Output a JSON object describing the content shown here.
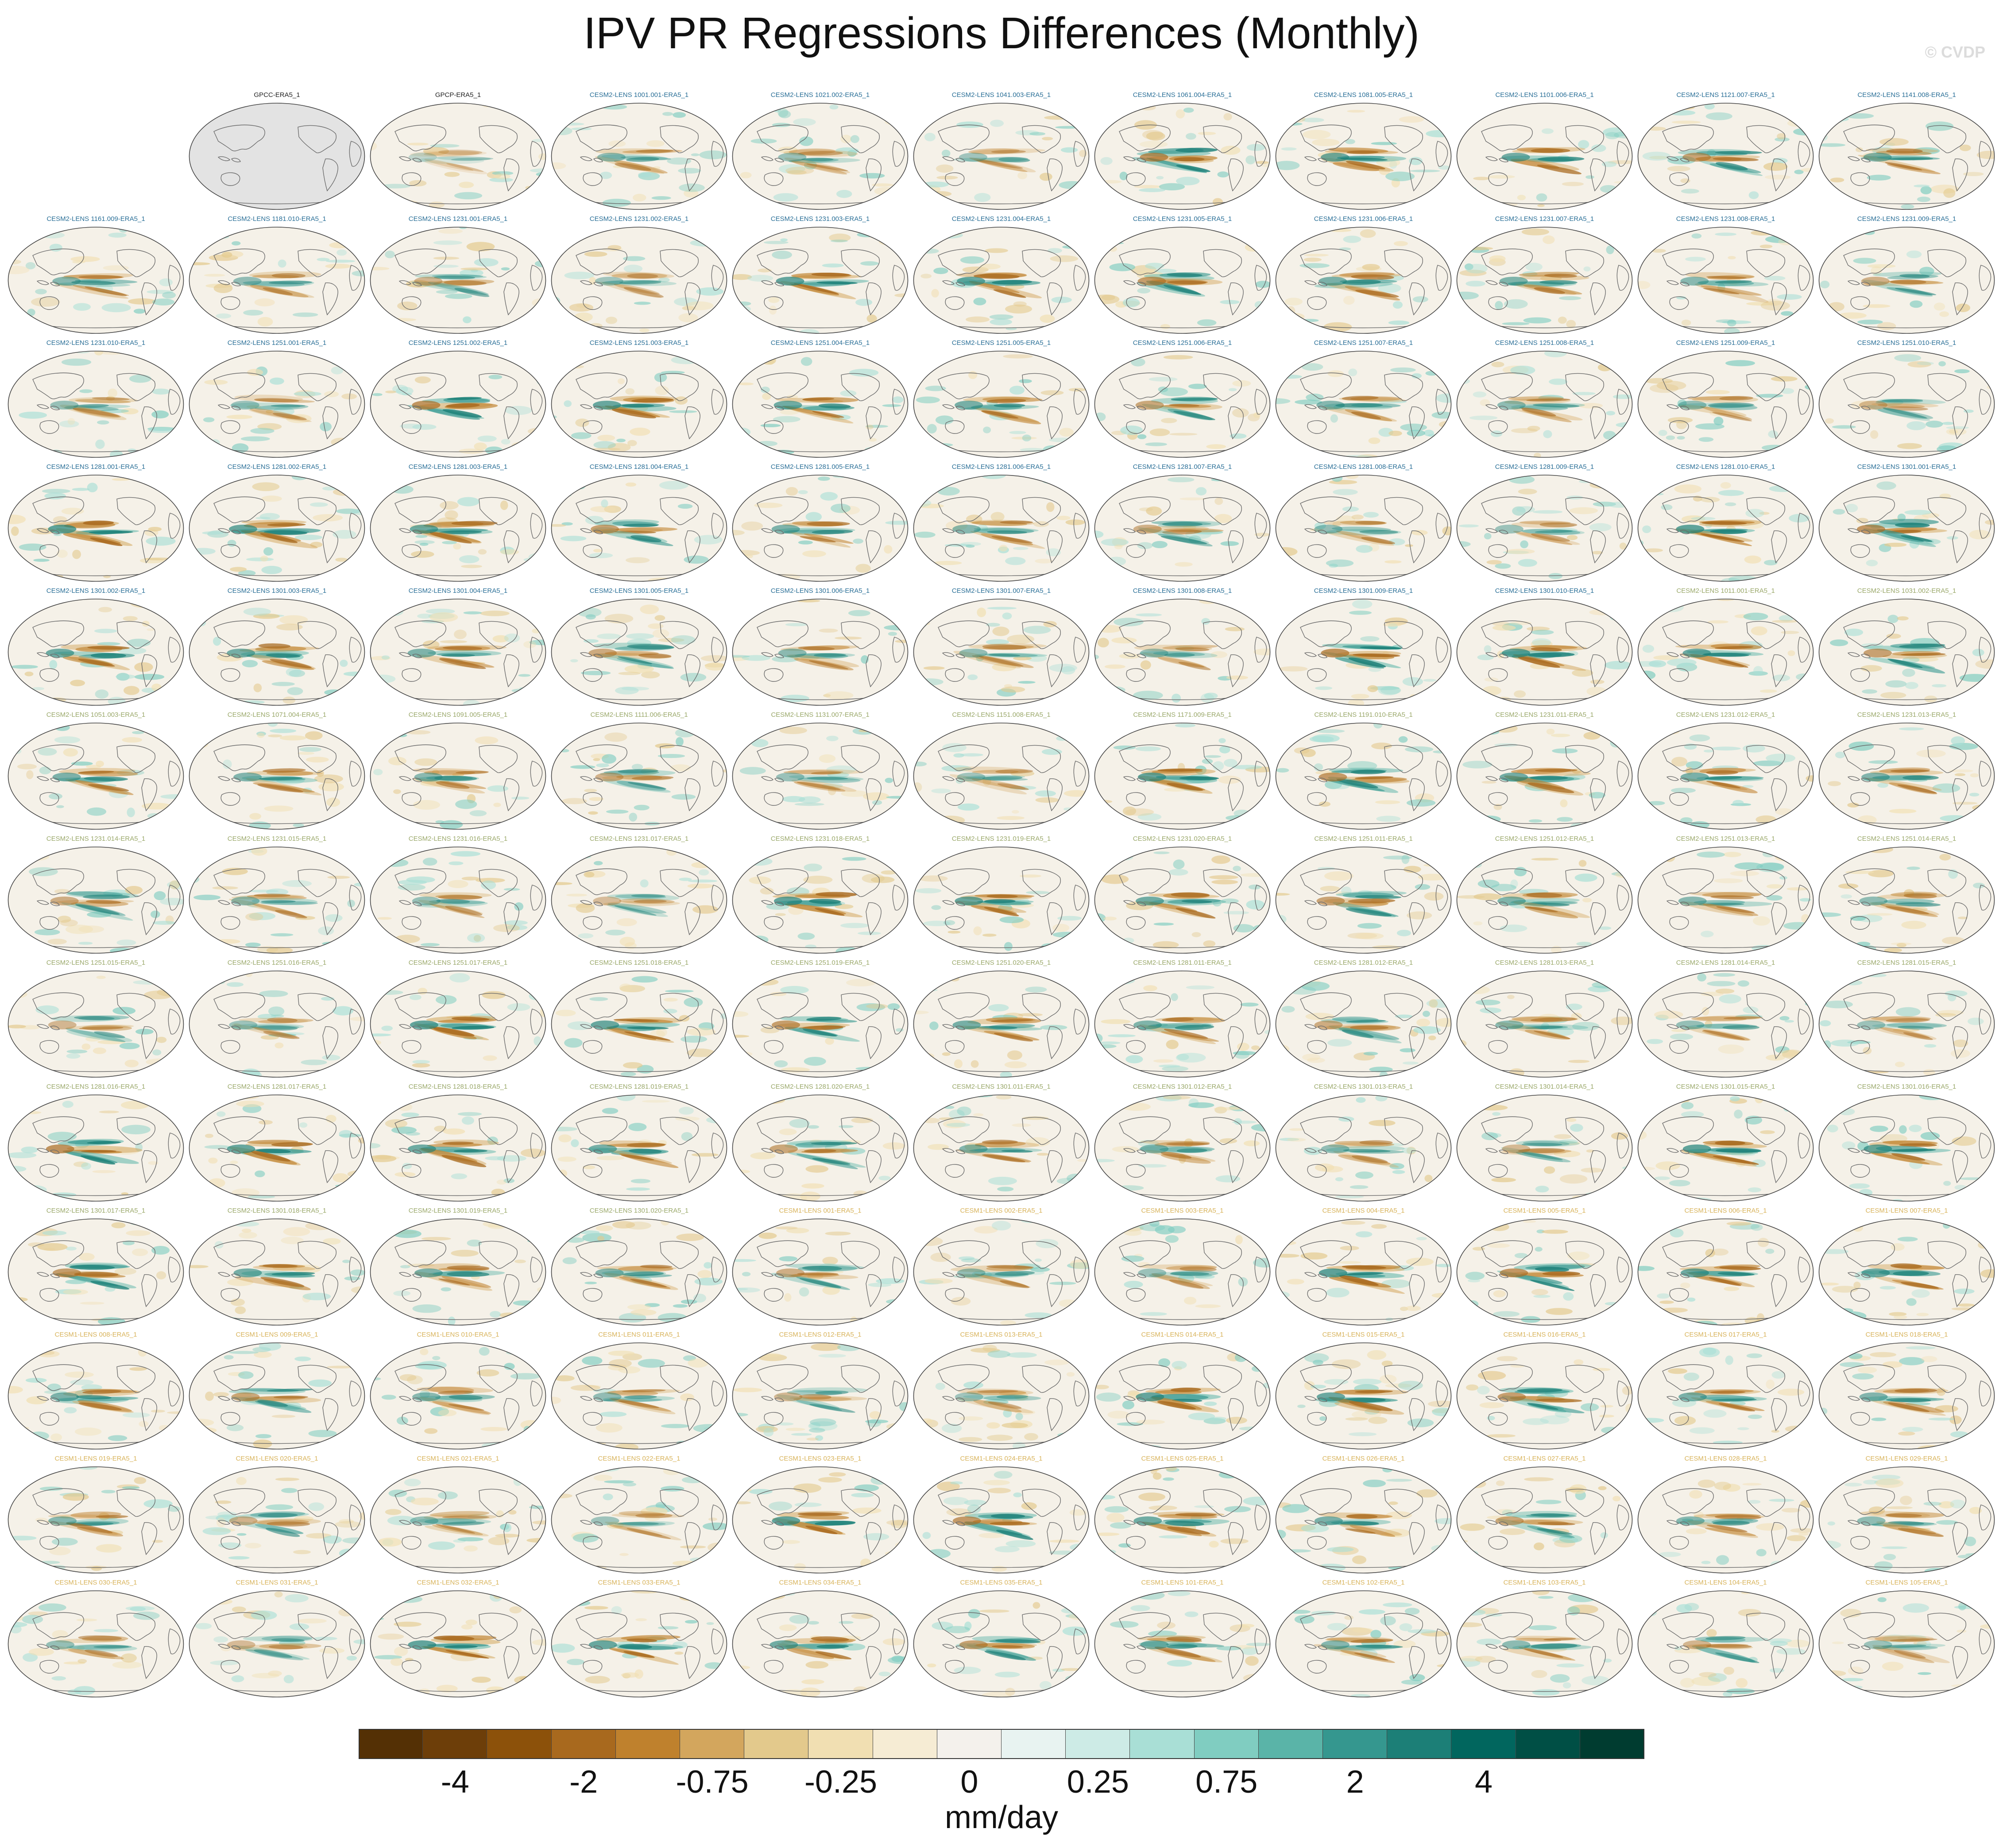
{
  "title": "IPV PR Regressions Differences (Monthly)",
  "watermark": "© CVDP",
  "colorbar": {
    "units": "mm/day",
    "colors": [
      "#543005",
      "#6d3e09",
      "#8c510a",
      "#a8691e",
      "#bf812d",
      "#d3a65d",
      "#e3c98c",
      "#f1dfb2",
      "#f6ecd4",
      "#f4f1ec",
      "#e8f3f1",
      "#cdebe6",
      "#a9dfd6",
      "#80cdc1",
      "#5ab4a8",
      "#35978f",
      "#1c7f77",
      "#01665e",
      "#004f45",
      "#003c30"
    ],
    "tick_labels": [
      "-4",
      "-2",
      "-0.75",
      "-0.25",
      "0",
      "0.25",
      "0.75",
      "2",
      "4"
    ]
  },
  "panels": [
    {
      "label": "",
      "group": "empty"
    },
    {
      "label": "GPCC-ERA5_1",
      "group": "obs-missing"
    },
    {
      "label": "GPCP-ERA5_1",
      "group": "obs"
    },
    {
      "label": "CESM2-LENS 1001.001-ERA5_1",
      "group": "cesm2"
    },
    {
      "label": "CESM2-LENS 1021.002-ERA5_1",
      "group": "cesm2"
    },
    {
      "label": "CESM2-LENS 1041.003-ERA5_1",
      "group": "cesm2"
    },
    {
      "label": "CESM2-LENS 1061.004-ERA5_1",
      "group": "cesm2"
    },
    {
      "label": "CESM2-LENS 1081.005-ERA5_1",
      "group": "cesm2"
    },
    {
      "label": "CESM2-LENS 1101.006-ERA5_1",
      "group": "cesm2"
    },
    {
      "label": "CESM2-LENS 1121.007-ERA5_1",
      "group": "cesm2"
    },
    {
      "label": "CESM2-LENS 1141.008-ERA5_1",
      "group": "cesm2"
    },
    {
      "label": "CESM2-LENS 1161.009-ERA5_1",
      "group": "cesm2"
    },
    {
      "label": "CESM2-LENS 1181.010-ERA5_1",
      "group": "cesm2"
    },
    {
      "label": "CESM2-LENS 1231.001-ERA5_1",
      "group": "cesm2"
    },
    {
      "label": "CESM2-LENS 1231.002-ERA5_1",
      "group": "cesm2"
    },
    {
      "label": "CESM2-LENS 1231.003-ERA5_1",
      "group": "cesm2"
    },
    {
      "label": "CESM2-LENS 1231.004-ERA5_1",
      "group": "cesm2"
    },
    {
      "label": "CESM2-LENS 1231.005-ERA5_1",
      "group": "cesm2"
    },
    {
      "label": "CESM2-LENS 1231.006-ERA5_1",
      "group": "cesm2"
    },
    {
      "label": "CESM2-LENS 1231.007-ERA5_1",
      "group": "cesm2"
    },
    {
      "label": "CESM2-LENS 1231.008-ERA5_1",
      "group": "cesm2"
    },
    {
      "label": "CESM2-LENS 1231.009-ERA5_1",
      "group": "cesm2"
    },
    {
      "label": "CESM2-LENS 1231.010-ERA5_1",
      "group": "cesm2"
    },
    {
      "label": "CESM2-LENS 1251.001-ERA5_1",
      "group": "cesm2"
    },
    {
      "label": "CESM2-LENS 1251.002-ERA5_1",
      "group": "cesm2"
    },
    {
      "label": "CESM2-LENS 1251.003-ERA5_1",
      "group": "cesm2"
    },
    {
      "label": "CESM2-LENS 1251.004-ERA5_1",
      "group": "cesm2"
    },
    {
      "label": "CESM2-LENS 1251.005-ERA5_1",
      "group": "cesm2"
    },
    {
      "label": "CESM2-LENS 1251.006-ERA5_1",
      "group": "cesm2"
    },
    {
      "label": "CESM2-LENS 1251.007-ERA5_1",
      "group": "cesm2"
    },
    {
      "label": "CESM2-LENS 1251.008-ERA5_1",
      "group": "cesm2"
    },
    {
      "label": "CESM2-LENS 1251.009-ERA5_1",
      "group": "cesm2"
    },
    {
      "label": "CESM2-LENS 1251.010-ERA5_1",
      "group": "cesm2"
    },
    {
      "label": "CESM2-LENS 1281.001-ERA5_1",
      "group": "cesm2"
    },
    {
      "label": "CESM2-LENS 1281.002-ERA5_1",
      "group": "cesm2"
    },
    {
      "label": "CESM2-LENS 1281.003-ERA5_1",
      "group": "cesm2"
    },
    {
      "label": "CESM2-LENS 1281.004-ERA5_1",
      "group": "cesm2"
    },
    {
      "label": "CESM2-LENS 1281.005-ERA5_1",
      "group": "cesm2"
    },
    {
      "label": "CESM2-LENS 1281.006-ERA5_1",
      "group": "cesm2"
    },
    {
      "label": "CESM2-LENS 1281.007-ERA5_1",
      "group": "cesm2"
    },
    {
      "label": "CESM2-LENS 1281.008-ERA5_1",
      "group": "cesm2"
    },
    {
      "label": "CESM2-LENS 1281.009-ERA5_1",
      "group": "cesm2"
    },
    {
      "label": "CESM2-LENS 1281.010-ERA5_1",
      "group": "cesm2"
    },
    {
      "label": "CESM2-LENS 1301.001-ERA5_1",
      "group": "cesm2"
    },
    {
      "label": "CESM2-LENS 1301.002-ERA5_1",
      "group": "cesm2"
    },
    {
      "label": "CESM2-LENS 1301.003-ERA5_1",
      "group": "cesm2"
    },
    {
      "label": "CESM2-LENS 1301.004-ERA5_1",
      "group": "cesm2"
    },
    {
      "label": "CESM2-LENS 1301.005-ERA5_1",
      "group": "cesm2"
    },
    {
      "label": "CESM2-LENS 1301.006-ERA5_1",
      "group": "cesm2"
    },
    {
      "label": "CESM2-LENS 1301.007-ERA5_1",
      "group": "cesm2"
    },
    {
      "label": "CESM2-LENS 1301.008-ERA5_1",
      "group": "cesm2"
    },
    {
      "label": "CESM2-LENS 1301.009-ERA5_1",
      "group": "cesm2"
    },
    {
      "label": "CESM2-LENS 1301.010-ERA5_1",
      "group": "cesm2"
    },
    {
      "label": "CESM2-LENS 1011.001-ERA5_1",
      "group": "cesm2-alt"
    },
    {
      "label": "CESM2-LENS 1031.002-ERA5_1",
      "group": "cesm2-alt"
    },
    {
      "label": "CESM2-LENS 1051.003-ERA5_1",
      "group": "cesm2-alt"
    },
    {
      "label": "CESM2-LENS 1071.004-ERA5_1",
      "group": "cesm2-alt"
    },
    {
      "label": "CESM2-LENS 1091.005-ERA5_1",
      "group": "cesm2-alt"
    },
    {
      "label": "CESM2-LENS 1111.006-ERA5_1",
      "group": "cesm2-alt"
    },
    {
      "label": "CESM2-LENS 1131.007-ERA5_1",
      "group": "cesm2-alt"
    },
    {
      "label": "CESM2-LENS 1151.008-ERA5_1",
      "group": "cesm2-alt"
    },
    {
      "label": "CESM2-LENS 1171.009-ERA5_1",
      "group": "cesm2-alt"
    },
    {
      "label": "CESM2-LENS 1191.010-ERA5_1",
      "group": "cesm2-alt"
    },
    {
      "label": "CESM2-LENS 1231.011-ERA5_1",
      "group": "cesm2-alt"
    },
    {
      "label": "CESM2-LENS 1231.012-ERA5_1",
      "group": "cesm2-alt"
    },
    {
      "label": "CESM2-LENS 1231.013-ERA5_1",
      "group": "cesm2-alt"
    },
    {
      "label": "CESM2-LENS 1231.014-ERA5_1",
      "group": "cesm2-alt"
    },
    {
      "label": "CESM2-LENS 1231.015-ERA5_1",
      "group": "cesm2-alt"
    },
    {
      "label": "CESM2-LENS 1231.016-ERA5_1",
      "group": "cesm2-alt"
    },
    {
      "label": "CESM2-LENS 1231.017-ERA5_1",
      "group": "cesm2-alt"
    },
    {
      "label": "CESM2-LENS 1231.018-ERA5_1",
      "group": "cesm2-alt"
    },
    {
      "label": "CESM2-LENS 1231.019-ERA5_1",
      "group": "cesm2-alt"
    },
    {
      "label": "CESM2-LENS 1231.020-ERA5_1",
      "group": "cesm2-alt"
    },
    {
      "label": "CESM2-LENS 1251.011-ERA5_1",
      "group": "cesm2-alt"
    },
    {
      "label": "CESM2-LENS 1251.012-ERA5_1",
      "group": "cesm2-alt"
    },
    {
      "label": "CESM2-LENS 1251.013-ERA5_1",
      "group": "cesm2-alt"
    },
    {
      "label": "CESM2-LENS 1251.014-ERA5_1",
      "group": "cesm2-alt"
    },
    {
      "label": "CESM2-LENS 1251.015-ERA5_1",
      "group": "cesm2-alt"
    },
    {
      "label": "CESM2-LENS 1251.016-ERA5_1",
      "group": "cesm2-alt"
    },
    {
      "label": "CESM2-LENS 1251.017-ERA5_1",
      "group": "cesm2-alt"
    },
    {
      "label": "CESM2-LENS 1251.018-ERA5_1",
      "group": "cesm2-alt"
    },
    {
      "label": "CESM2-LENS 1251.019-ERA5_1",
      "group": "cesm2-alt"
    },
    {
      "label": "CESM2-LENS 1251.020-ERA5_1",
      "group": "cesm2-alt"
    },
    {
      "label": "CESM2-LENS 1281.011-ERA5_1",
      "group": "cesm2-alt"
    },
    {
      "label": "CESM2-LENS 1281.012-ERA5_1",
      "group": "cesm2-alt"
    },
    {
      "label": "CESM2-LENS 1281.013-ERA5_1",
      "group": "cesm2-alt"
    },
    {
      "label": "CESM2-LENS 1281.014-ERA5_1",
      "group": "cesm2-alt"
    },
    {
      "label": "CESM2-LENS 1281.015-ERA5_1",
      "group": "cesm2-alt"
    },
    {
      "label": "CESM2-LENS 1281.016-ERA5_1",
      "group": "cesm2-alt"
    },
    {
      "label": "CESM2-LENS 1281.017-ERA5_1",
      "group": "cesm2-alt"
    },
    {
      "label": "CESM2-LENS 1281.018-ERA5_1",
      "group": "cesm2-alt"
    },
    {
      "label": "CESM2-LENS 1281.019-ERA5_1",
      "group": "cesm2-alt"
    },
    {
      "label": "CESM2-LENS 1281.020-ERA5_1",
      "group": "cesm2-alt"
    },
    {
      "label": "CESM2-LENS 1301.011-ERA5_1",
      "group": "cesm2-alt"
    },
    {
      "label": "CESM2-LENS 1301.012-ERA5_1",
      "group": "cesm2-alt"
    },
    {
      "label": "CESM2-LENS 1301.013-ERA5_1",
      "group": "cesm2-alt"
    },
    {
      "label": "CESM2-LENS 1301.014-ERA5_1",
      "group": "cesm2-alt"
    },
    {
      "label": "CESM2-LENS 1301.015-ERA5_1",
      "group": "cesm2-alt"
    },
    {
      "label": "CESM2-LENS 1301.016-ERA5_1",
      "group": "cesm2-alt"
    },
    {
      "label": "CESM2-LENS 1301.017-ERA5_1",
      "group": "cesm2-alt"
    },
    {
      "label": "CESM2-LENS 1301.018-ERA5_1",
      "group": "cesm2-alt"
    },
    {
      "label": "CESM2-LENS 1301.019-ERA5_1",
      "group": "cesm2-alt"
    },
    {
      "label": "CESM2-LENS 1301.020-ERA5_1",
      "group": "cesm2-alt"
    },
    {
      "label": "CESM1-LENS 001-ERA5_1",
      "group": "cesm1"
    },
    {
      "label": "CESM1-LENS 002-ERA5_1",
      "group": "cesm1"
    },
    {
      "label": "CESM1-LENS 003-ERA5_1",
      "group": "cesm1"
    },
    {
      "label": "CESM1-LENS 004-ERA5_1",
      "group": "cesm1"
    },
    {
      "label": "CESM1-LENS 005-ERA5_1",
      "group": "cesm1"
    },
    {
      "label": "CESM1-LENS 006-ERA5_1",
      "group": "cesm1"
    },
    {
      "label": "CESM1-LENS 007-ERA5_1",
      "group": "cesm1"
    },
    {
      "label": "CESM1-LENS 008-ERA5_1",
      "group": "cesm1"
    },
    {
      "label": "CESM1-LENS 009-ERA5_1",
      "group": "cesm1"
    },
    {
      "label": "CESM1-LENS 010-ERA5_1",
      "group": "cesm1"
    },
    {
      "label": "CESM1-LENS 011-ERA5_1",
      "group": "cesm1"
    },
    {
      "label": "CESM1-LENS 012-ERA5_1",
      "group": "cesm1"
    },
    {
      "label": "CESM1-LENS 013-ERA5_1",
      "group": "cesm1"
    },
    {
      "label": "CESM1-LENS 014-ERA5_1",
      "group": "cesm1"
    },
    {
      "label": "CESM1-LENS 015-ERA5_1",
      "group": "cesm1"
    },
    {
      "label": "CESM1-LENS 016-ERA5_1",
      "group": "cesm1"
    },
    {
      "label": "CESM1-LENS 017-ERA5_1",
      "group": "cesm1"
    },
    {
      "label": "CESM1-LENS 018-ERA5_1",
      "group": "cesm1"
    },
    {
      "label": "CESM1-LENS 019-ERA5_1",
      "group": "cesm1"
    },
    {
      "label": "CESM1-LENS 020-ERA5_1",
      "group": "cesm1"
    },
    {
      "label": "CESM1-LENS 021-ERA5_1",
      "group": "cesm1"
    },
    {
      "label": "CESM1-LENS 022-ERA5_1",
      "group": "cesm1"
    },
    {
      "label": "CESM1-LENS 023-ERA5_1",
      "group": "cesm1"
    },
    {
      "label": "CESM1-LENS 024-ERA5_1",
      "group": "cesm1"
    },
    {
      "label": "CESM1-LENS 025-ERA5_1",
      "group": "cesm1"
    },
    {
      "label": "CESM1-LENS 026-ERA5_1",
      "group": "cesm1"
    },
    {
      "label": "CESM1-LENS 027-ERA5_1",
      "group": "cesm1"
    },
    {
      "label": "CESM1-LENS 028-ERA5_1",
      "group": "cesm1"
    },
    {
      "label": "CESM1-LENS 029-ERA5_1",
      "group": "cesm1"
    },
    {
      "label": "CESM1-LENS 030-ERA5_1",
      "group": "cesm1"
    },
    {
      "label": "CESM1-LENS 031-ERA5_1",
      "group": "cesm1"
    },
    {
      "label": "CESM1-LENS 032-ERA5_1",
      "group": "cesm1"
    },
    {
      "label": "CESM1-LENS 033-ERA5_1",
      "group": "cesm1"
    },
    {
      "label": "CESM1-LENS 034-ERA5_1",
      "group": "cesm1"
    },
    {
      "label": "CESM1-LENS 035-ERA5_1",
      "group": "cesm1"
    },
    {
      "label": "CESM1-LENS 101-ERA5_1",
      "group": "cesm1"
    },
    {
      "label": "CESM1-LENS 102-ERA5_1",
      "group": "cesm1"
    },
    {
      "label": "CESM1-LENS 103-ERA5_1",
      "group": "cesm1"
    },
    {
      "label": "CESM1-LENS 104-ERA5_1",
      "group": "cesm1"
    },
    {
      "label": "CESM1-LENS 105-ERA5_1",
      "group": "cesm1"
    }
  ]
}
